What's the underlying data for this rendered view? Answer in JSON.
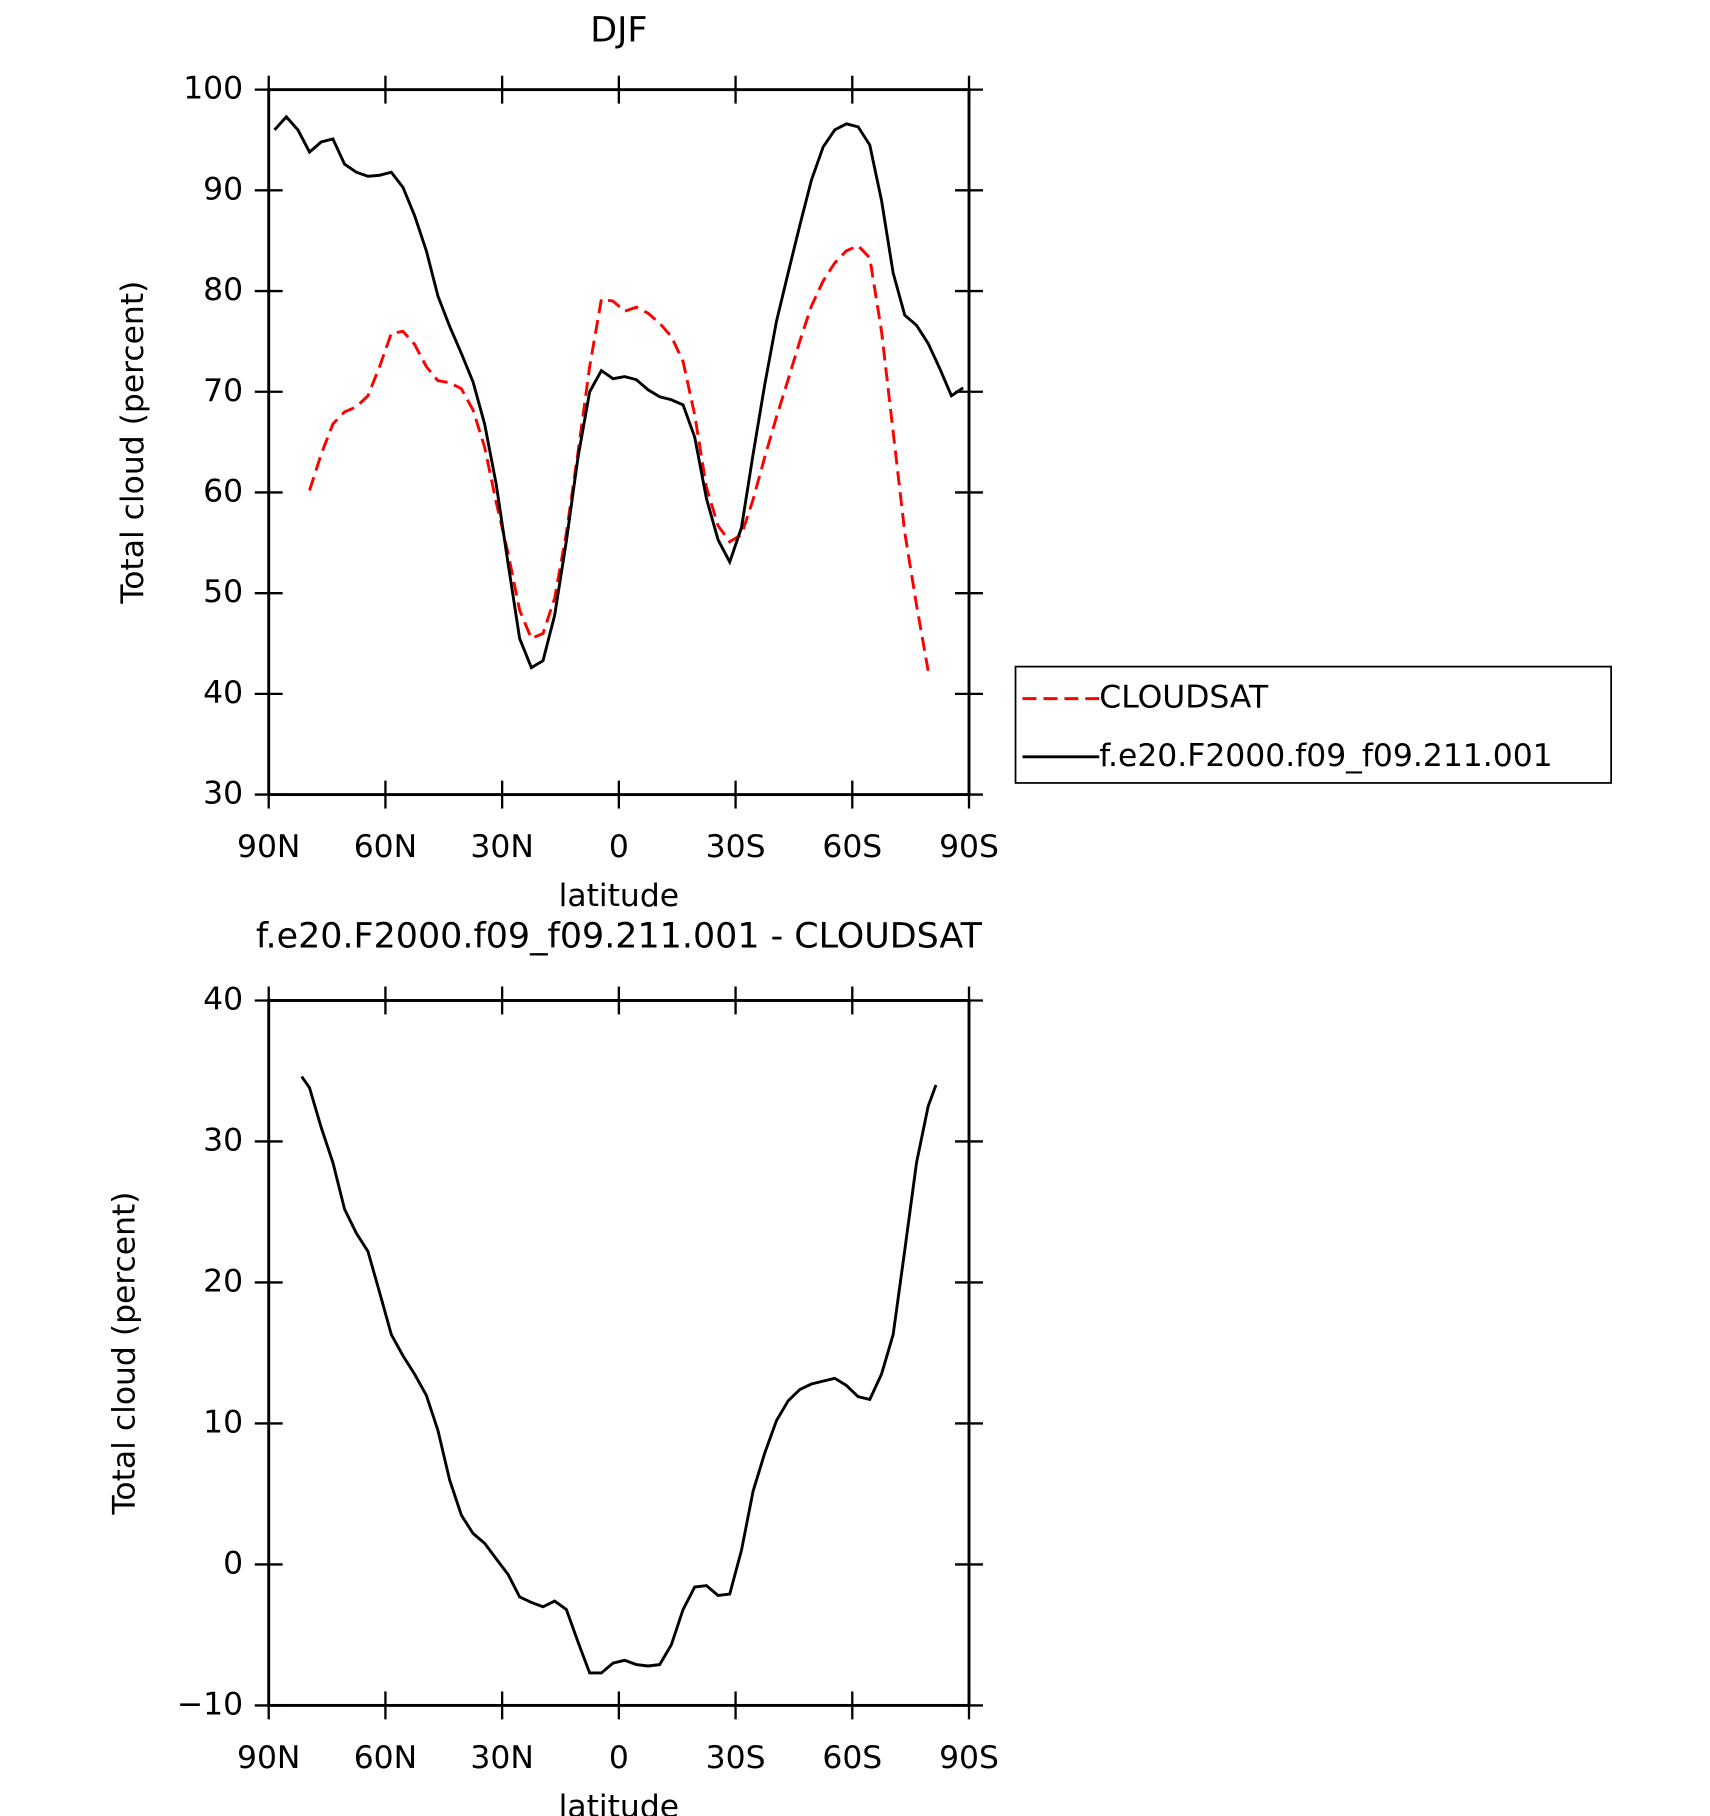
{
  "chart_data": [
    {
      "type": "line",
      "title": "DJF",
      "xlabel": "latitude",
      "ylabel": "Total cloud (percent)",
      "x": [
        88.5,
        85.5,
        82.5,
        79.5,
        76.5,
        73.5,
        70.5,
        67.5,
        64.5,
        61.5,
        58.5,
        55.5,
        52.5,
        49.5,
        46.5,
        43.5,
        40.5,
        37.5,
        34.5,
        31.5,
        28.5,
        25.5,
        22.5,
        19.5,
        16.5,
        13.5,
        10.5,
        7.5,
        4.5,
        1.5,
        -1.5,
        -4.5,
        -7.5,
        -10.5,
        -13.5,
        -16.5,
        -19.5,
        -22.5,
        -25.5,
        -28.5,
        -31.5,
        -34.5,
        -37.5,
        -40.5,
        -43.5,
        -46.5,
        -49.5,
        -52.5,
        -55.5,
        -58.5,
        -61.5,
        -64.5,
        -67.5,
        -70.5,
        -73.5,
        -76.5,
        -79.5,
        -82.5,
        -85.5,
        -88.5
      ],
      "series": [
        {
          "name": "CLOUDSAT",
          "color": "#ff0000",
          "dash": "dashed",
          "values": [
            null,
            null,
            null,
            60.2,
            63.8,
            66.8,
            68.0,
            68.5,
            69.6,
            72.5,
            75.8,
            76,
            74.7,
            72.5,
            71.1,
            70.9,
            70.3,
            68.2,
            64.5,
            59,
            54,
            48.3,
            45.5,
            46,
            49.5,
            56,
            64,
            72.5,
            79.2,
            79,
            78,
            78.4,
            77.8,
            76.8,
            75.5,
            73,
            67.7,
            60.5,
            56.7,
            55.1,
            55.8,
            59.3,
            63.5,
            67.5,
            71.2,
            75,
            78.5,
            81,
            82.8,
            84,
            84.5,
            83.3,
            76,
            66,
            56,
            48.8,
            42.3,
            null,
            null,
            null
          ]
        },
        {
          "name": "f.e20.F2000.f09_f09.211.001",
          "color": "#000000",
          "dash": "solid",
          "values": [
            96,
            97.3,
            96,
            93.8,
            94.8,
            95.1,
            92.6,
            91.8,
            91.4,
            91.5,
            91.8,
            90.3,
            87.5,
            84,
            79.5,
            76.5,
            73.8,
            71,
            66.8,
            60.8,
            53,
            45.5,
            42.6,
            43.3,
            47.8,
            55.2,
            63.5,
            70,
            72.1,
            71.3,
            71.5,
            71.2,
            70.2,
            69.5,
            69.2,
            68.7,
            65.5,
            59.4,
            55.3,
            53.1,
            56.5,
            63.8,
            70.7,
            77,
            81.8,
            86.5,
            91,
            94.3,
            96,
            96.6,
            96.3,
            94.5,
            89,
            81.8,
            77.6,
            76.6,
            74.8,
            72.3,
            69.6,
            70.4
          ]
        }
      ],
      "xlim": [
        90,
        -90
      ],
      "ylim": [
        30,
        100
      ],
      "xticks": [
        {
          "value": 90,
          "label": "90N"
        },
        {
          "value": 60,
          "label": "60N"
        },
        {
          "value": 30,
          "label": "30N"
        },
        0,
        {
          "value": -30,
          "label": "30S"
        },
        {
          "value": -60,
          "label": "60S"
        },
        {
          "value": -90,
          "label": "90S"
        }
      ],
      "yticks": [
        30,
        40,
        50,
        60,
        70,
        80,
        90,
        100
      ],
      "legend": "right"
    },
    {
      "type": "line",
      "title": "f.e20.F2000.f09_f09.211.001 - CLOUDSAT",
      "xlabel": "latitude",
      "ylabel": "Total cloud (percent)",
      "x": [
        81.5,
        79.5,
        76.5,
        73.5,
        70.5,
        67.5,
        64.5,
        61.5,
        58.5,
        55.5,
        52.5,
        49.5,
        46.5,
        43.5,
        40.5,
        37.5,
        34.5,
        31.5,
        28.5,
        25.5,
        22.5,
        19.5,
        16.5,
        13.5,
        10.5,
        7.5,
        4.5,
        1.5,
        -1.5,
        -4.5,
        -7.5,
        -10.5,
        -13.5,
        -16.5,
        -19.5,
        -22.5,
        -25.5,
        -28.5,
        -31.5,
        -34.5,
        -37.5,
        -40.5,
        -43.5,
        -46.5,
        -49.5,
        -52.5,
        -55.5,
        -58.5,
        -61.5,
        -64.5,
        -67.5,
        -70.5,
        -73.5,
        -76.5,
        -79.5,
        -81.5
      ],
      "color": "#000000",
      "values": [
        34.6,
        33.8,
        31,
        28.5,
        25.2,
        23.5,
        22.2,
        19.3,
        16.3,
        14.8,
        13.5,
        12,
        9.5,
        6,
        3.5,
        2.2,
        1.5,
        0.4,
        -0.7,
        -2.3,
        -2.7,
        -3,
        -2.6,
        -3.2,
        -5.5,
        -7.7,
        -7.7,
        -7,
        -6.8,
        -7.1,
        -7.2,
        -7.1,
        -5.7,
        -3.2,
        -1.6,
        -1.5,
        -2.2,
        -2.1,
        1,
        5.2,
        7.9,
        10.2,
        11.6,
        12.4,
        12.8,
        13,
        13.2,
        12.7,
        11.9,
        11.7,
        13.5,
        16.3,
        22.3,
        28.5,
        32.5,
        34
      ],
      "xlim": [
        90,
        -90
      ],
      "ylim": [
        -10,
        40
      ],
      "xticks": [
        {
          "value": 90,
          "label": "90N"
        },
        {
          "value": 60,
          "label": "60N"
        },
        {
          "value": 30,
          "label": "30N"
        },
        0,
        {
          "value": -30,
          "label": "30S"
        },
        {
          "value": -60,
          "label": "60S"
        },
        {
          "value": -90,
          "label": "90S"
        }
      ],
      "yticks": [
        {
          "value": -10,
          "label": "−10"
        },
        0,
        10,
        20,
        30,
        40
      ]
    }
  ]
}
